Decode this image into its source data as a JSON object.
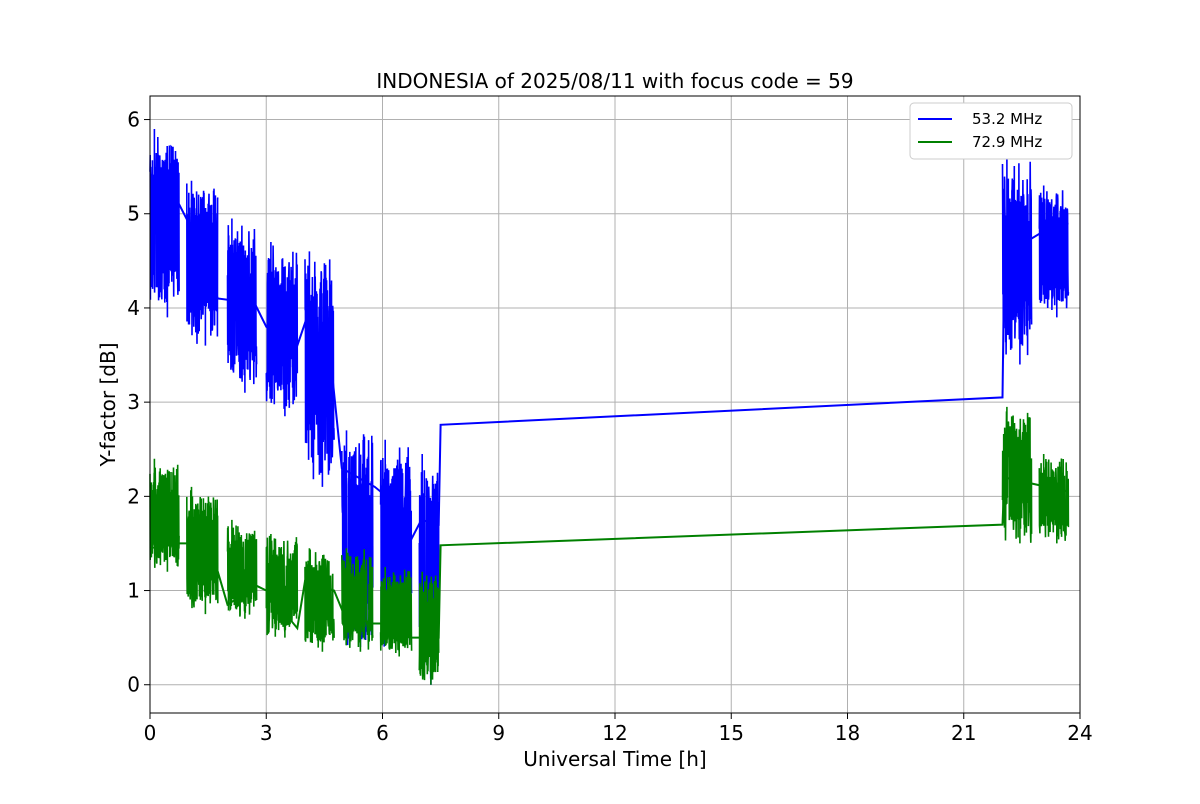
{
  "chart_data": {
    "type": "line",
    "title": "INDONESIA of 2025/08/11 with focus code = 59",
    "xlabel": "Universal Time [h]",
    "ylabel": "Y-factor [dB]",
    "xlim": [
      0,
      24
    ],
    "ylim": [
      -0.3,
      6.25
    ],
    "xticks": [
      0,
      3,
      6,
      9,
      12,
      15,
      18,
      21,
      24
    ],
    "yticks": [
      0,
      1,
      2,
      3,
      4,
      5,
      6
    ],
    "grid": true,
    "legend_position": "top-right",
    "series": [
      {
        "name": "53.2 MHz",
        "color": "#0000ff",
        "segments": [
          {
            "x0": 0.0,
            "x1": 0.75,
            "min": 3.9,
            "max": 5.9
          },
          {
            "x0": 0.95,
            "x1": 1.75,
            "min": 3.6,
            "max": 5.35
          },
          {
            "x0": 2.0,
            "x1": 2.75,
            "min": 3.1,
            "max": 4.95
          },
          {
            "x0": 3.0,
            "x1": 3.8,
            "min": 2.85,
            "max": 4.7
          },
          {
            "x0": 4.0,
            "x1": 4.75,
            "min": 2.1,
            "max": 4.6
          },
          {
            "x0": 4.95,
            "x1": 5.75,
            "min": 0.4,
            "max": 2.7
          },
          {
            "x0": 5.95,
            "x1": 6.75,
            "min": 0.35,
            "max": 2.6
          },
          {
            "x0": 6.95,
            "x1": 7.45,
            "min": 0.0,
            "max": 2.45
          },
          {
            "x0": 22.0,
            "x1": 22.75,
            "min": 3.4,
            "max": 5.6
          },
          {
            "x0": 22.95,
            "x1": 23.7,
            "min": 3.9,
            "max": 5.3
          }
        ],
        "connectors": [
          [
            0.0,
            5.3
          ],
          [
            0.75,
            5.1
          ],
          [
            1.0,
            4.9
          ],
          [
            1.75,
            4.1
          ],
          [
            2.7,
            4.05
          ],
          [
            3.0,
            3.8
          ],
          [
            3.8,
            3.6
          ],
          [
            4.05,
            3.9
          ],
          [
            4.7,
            3.3
          ],
          [
            4.95,
            2.3
          ],
          [
            5.8,
            2.1
          ],
          [
            6.1,
            2.0
          ],
          [
            6.75,
            1.55
          ],
          [
            7.0,
            1.75
          ],
          [
            7.45,
            1.7
          ],
          [
            7.5,
            2.76
          ],
          [
            22.0,
            3.05
          ],
          [
            22.05,
            4.6
          ],
          [
            22.6,
            4.7
          ],
          [
            23.0,
            4.8
          ],
          [
            23.7,
            4.9
          ]
        ]
      },
      {
        "name": "72.9 MHz",
        "color": "#008000",
        "segments": [
          {
            "x0": 0.0,
            "x1": 0.75,
            "min": 1.2,
            "max": 2.4
          },
          {
            "x0": 0.95,
            "x1": 1.75,
            "min": 0.75,
            "max": 2.1
          },
          {
            "x0": 2.0,
            "x1": 2.75,
            "min": 0.7,
            "max": 1.75
          },
          {
            "x0": 3.0,
            "x1": 3.8,
            "min": 0.5,
            "max": 1.6
          },
          {
            "x0": 4.0,
            "x1": 4.75,
            "min": 0.35,
            "max": 1.45
          },
          {
            "x0": 4.95,
            "x1": 5.75,
            "min": 0.35,
            "max": 1.45
          },
          {
            "x0": 5.95,
            "x1": 6.75,
            "min": 0.3,
            "max": 1.25
          },
          {
            "x0": 6.95,
            "x1": 7.45,
            "min": 0.0,
            "max": 1.2
          },
          {
            "x0": 22.0,
            "x1": 22.75,
            "min": 1.5,
            "max": 2.95
          },
          {
            "x0": 22.95,
            "x1": 23.7,
            "min": 1.5,
            "max": 2.45
          }
        ],
        "connectors": [
          [
            0.0,
            1.45
          ],
          [
            0.75,
            1.5
          ],
          [
            1.0,
            1.5
          ],
          [
            1.75,
            1.2
          ],
          [
            2.0,
            0.85
          ],
          [
            2.75,
            1.05
          ],
          [
            3.0,
            1.0
          ],
          [
            3.8,
            0.6
          ],
          [
            4.0,
            1.1
          ],
          [
            4.75,
            1.0
          ],
          [
            5.0,
            0.75
          ],
          [
            5.75,
            0.65
          ],
          [
            6.0,
            0.65
          ],
          [
            6.75,
            0.5
          ],
          [
            7.45,
            0.5
          ],
          [
            7.5,
            1.48
          ],
          [
            22.0,
            1.7
          ],
          [
            22.05,
            2.2
          ],
          [
            23.7,
            2.05
          ]
        ]
      }
    ]
  }
}
